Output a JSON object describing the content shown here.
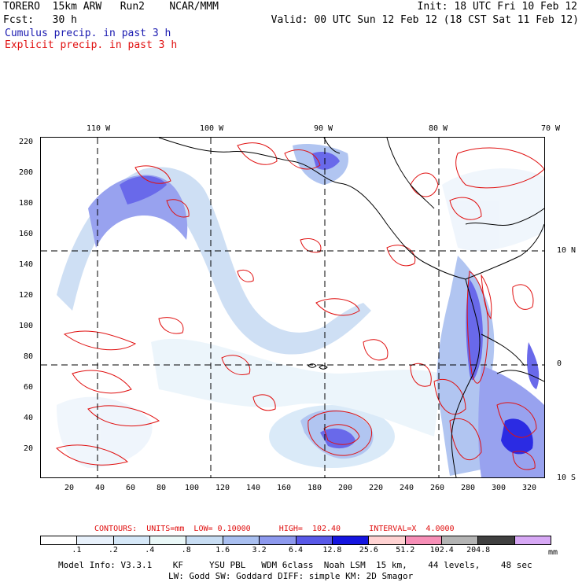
{
  "header": {
    "line1_left": "TORERO  15km ARW   Run2    NCAR/MMM",
    "line1_right": "Init: 18 UTC Fri 10 Feb 12",
    "line2_left": "Fcst:   30 h",
    "line2_right": "Valid: 00 UTC Sun 12 Feb 12 (18 CST Sat 11 Feb 12)",
    "legend_blue": "Cumulus precip. in past 3 h",
    "legend_red": "Explicit precip. in past 3 h"
  },
  "map": {
    "lon_labels": [
      "110 W",
      "100 W",
      "90 W",
      "80 W",
      "70 W"
    ],
    "lat_labels": [
      "10 N",
      "0",
      "10 S"
    ],
    "y_ticks": [
      "220",
      "200",
      "180",
      "160",
      "140",
      "120",
      "100",
      "80",
      "60",
      "40",
      "20"
    ],
    "x_ticks": [
      "20",
      "40",
      "60",
      "80",
      "100",
      "120",
      "140",
      "160",
      "180",
      "200",
      "220",
      "240",
      "260",
      "280",
      "300",
      "320"
    ]
  },
  "contour_info": "CONTOURS:  UNITS=mm  LOW= 0.10000      HIGH=  102.40      INTERVAL=X  4.0000",
  "colorbar": {
    "colors": [
      "#ffffff",
      "#e8f1fb",
      "#d6e8f8",
      "#eaf8f8",
      "#c8ddf3",
      "#a9bff0",
      "#8d99ee",
      "#5959e8",
      "#1515e0",
      "#ffd2d2",
      "#f78fb7",
      "#b4b4b4",
      "#404040",
      "#d7a8f5"
    ],
    "labels": [
      ".1",
      ".2",
      ".4",
      ".8",
      "1.6",
      "3.2",
      "6.4",
      "12.8",
      "25.6",
      "51.2",
      "102.4",
      "204.8"
    ],
    "unit": "mm"
  },
  "footer": {
    "line1": "Model Info: V3.3.1    KF     YSU PBL   WDM 6class  Noah LSM  15 km,    44 levels,    48 sec",
    "line2": "LW: Godd SW: Goddard DIFF: simple KM: 2D Smagor"
  }
}
